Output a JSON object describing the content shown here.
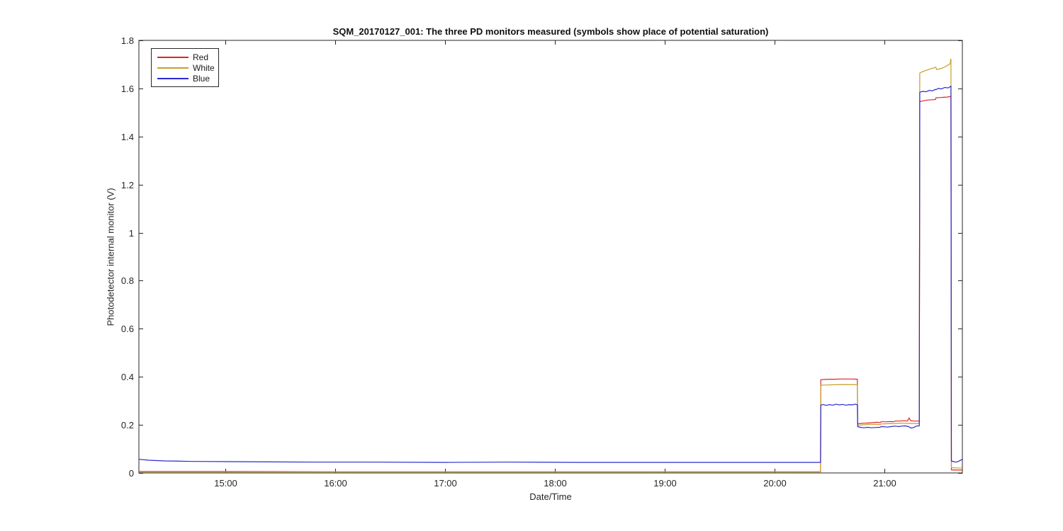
{
  "chart_data": {
    "type": "line",
    "title": "SQM_20170127_001: The three PD monitors measured (symbols show place of potential saturation)",
    "xlabel": "Date/Time",
    "ylabel": "Photodetector internal monitor (V)",
    "x_range": [
      14.213,
      21.71
    ],
    "y_range": [
      0,
      1.8
    ],
    "grid": false,
    "legend_position": "top-left",
    "x_ticks": [
      {
        "value": 15,
        "label": "15:00"
      },
      {
        "value": 16,
        "label": "16:00"
      },
      {
        "value": 17,
        "label": "17:00"
      },
      {
        "value": 18,
        "label": "18:00"
      },
      {
        "value": 19,
        "label": "19:00"
      },
      {
        "value": 20,
        "label": "20:00"
      },
      {
        "value": 21,
        "label": "21:00"
      }
    ],
    "y_ticks": [
      {
        "value": 0,
        "label": "0"
      },
      {
        "value": 0.2,
        "label": "0.2"
      },
      {
        "value": 0.4,
        "label": "0.4"
      },
      {
        "value": 0.6,
        "label": "0.6"
      },
      {
        "value": 0.8,
        "label": "0.8"
      },
      {
        "value": 1,
        "label": "1"
      },
      {
        "value": 1.2,
        "label": "1.2"
      },
      {
        "value": 1.4,
        "label": "1.4"
      },
      {
        "value": 1.6,
        "label": "1.6"
      },
      {
        "value": 1.8,
        "label": "1.8"
      }
    ],
    "axis_color": "#262626",
    "series": [
      {
        "label": "Red",
        "color": "#e02421",
        "points": [
          [
            14.213,
            0.006
          ],
          [
            15,
            0.006
          ],
          [
            16,
            0.005
          ],
          [
            17,
            0.005
          ],
          [
            18,
            0.005
          ],
          [
            19,
            0.005
          ],
          [
            20,
            0.005
          ],
          [
            20.419,
            0.005
          ],
          [
            20.421,
            0.388
          ],
          [
            20.45,
            0.389
          ],
          [
            20.5,
            0.39
          ],
          [
            20.55,
            0.39
          ],
          [
            20.6,
            0.391
          ],
          [
            20.65,
            0.391
          ],
          [
            20.7,
            0.391
          ],
          [
            20.754,
            0.39
          ],
          [
            20.757,
            0.204
          ],
          [
            20.78,
            0.206
          ],
          [
            20.82,
            0.207
          ],
          [
            20.86,
            0.208
          ],
          [
            20.9,
            0.21
          ],
          [
            20.94,
            0.211
          ],
          [
            20.96,
            0.209
          ],
          [
            20.97,
            0.213
          ],
          [
            21.02,
            0.213
          ],
          [
            21.06,
            0.214
          ],
          [
            21.08,
            0.213
          ],
          [
            21.1,
            0.216
          ],
          [
            21.14,
            0.216
          ],
          [
            21.18,
            0.217
          ],
          [
            21.21,
            0.216
          ],
          [
            21.225,
            0.229
          ],
          [
            21.24,
            0.217
          ],
          [
            21.27,
            0.216
          ],
          [
            21.3,
            0.216
          ],
          [
            21.318,
            0.215
          ],
          [
            21.322,
            1.545
          ],
          [
            21.36,
            1.549
          ],
          [
            21.4,
            1.552
          ],
          [
            21.44,
            1.553
          ],
          [
            21.465,
            1.554
          ],
          [
            21.47,
            1.561
          ],
          [
            21.5,
            1.562
          ],
          [
            21.54,
            1.563
          ],
          [
            21.57,
            1.564
          ],
          [
            21.6,
            1.566
          ],
          [
            21.606,
            1.567
          ],
          [
            21.61,
            0.013
          ],
          [
            21.65,
            0.012
          ],
          [
            21.71,
            0.012
          ]
        ]
      },
      {
        "label": "White",
        "color": "#c79d2a",
        "points": [
          [
            14.213,
            0.004
          ],
          [
            16,
            0.004
          ],
          [
            18,
            0.004
          ],
          [
            20,
            0.004
          ],
          [
            20.419,
            0.004
          ],
          [
            20.421,
            0.365
          ],
          [
            20.47,
            0.366
          ],
          [
            20.55,
            0.367
          ],
          [
            20.65,
            0.368
          ],
          [
            20.754,
            0.367
          ],
          [
            20.757,
            0.198
          ],
          [
            20.8,
            0.2
          ],
          [
            20.86,
            0.202
          ],
          [
            20.92,
            0.203
          ],
          [
            20.96,
            0.201
          ],
          [
            20.97,
            0.204
          ],
          [
            21.04,
            0.205
          ],
          [
            21.1,
            0.206
          ],
          [
            21.16,
            0.207
          ],
          [
            21.22,
            0.206
          ],
          [
            21.27,
            0.206
          ],
          [
            21.318,
            0.205
          ],
          [
            21.322,
            1.664
          ],
          [
            21.35,
            1.67
          ],
          [
            21.39,
            1.677
          ],
          [
            21.43,
            1.683
          ],
          [
            21.462,
            1.687
          ],
          [
            21.468,
            1.689
          ],
          [
            21.475,
            1.679
          ],
          [
            21.5,
            1.681
          ],
          [
            21.53,
            1.685
          ],
          [
            21.56,
            1.692
          ],
          [
            21.585,
            1.699
          ],
          [
            21.6,
            1.703
          ],
          [
            21.603,
            1.721
          ],
          [
            21.606,
            1.722
          ],
          [
            21.61,
            0.022
          ],
          [
            21.65,
            0.021
          ],
          [
            21.71,
            0.02
          ]
        ]
      },
      {
        "label": "Blue",
        "color": "#2a2ad0",
        "points": [
          [
            14.213,
            0.057
          ],
          [
            14.3,
            0.053
          ],
          [
            14.45,
            0.05
          ],
          [
            14.7,
            0.048
          ],
          [
            15,
            0.047
          ],
          [
            15.4,
            0.046
          ],
          [
            15.8,
            0.045
          ],
          [
            16.3,
            0.045
          ],
          [
            17,
            0.044
          ],
          [
            17.6,
            0.045
          ],
          [
            18.2,
            0.044
          ],
          [
            18.8,
            0.044
          ],
          [
            19.4,
            0.044
          ],
          [
            20,
            0.044
          ],
          [
            20.419,
            0.044
          ],
          [
            20.421,
            0.282
          ],
          [
            20.44,
            0.285
          ],
          [
            20.47,
            0.281
          ],
          [
            20.5,
            0.284
          ],
          [
            20.53,
            0.282
          ],
          [
            20.56,
            0.286
          ],
          [
            20.59,
            0.283
          ],
          [
            20.62,
            0.285
          ],
          [
            20.65,
            0.282
          ],
          [
            20.68,
            0.284
          ],
          [
            20.71,
            0.283
          ],
          [
            20.73,
            0.286
          ],
          [
            20.754,
            0.284
          ],
          [
            20.757,
            0.193
          ],
          [
            20.78,
            0.19
          ],
          [
            20.81,
            0.188
          ],
          [
            20.85,
            0.19
          ],
          [
            20.88,
            0.188
          ],
          [
            20.92,
            0.189
          ],
          [
            20.96,
            0.19
          ],
          [
            20.97,
            0.193
          ],
          [
            21.03,
            0.191
          ],
          [
            21.06,
            0.193
          ],
          [
            21.1,
            0.195
          ],
          [
            21.13,
            0.193
          ],
          [
            21.16,
            0.195
          ],
          [
            21.19,
            0.196
          ],
          [
            21.22,
            0.193
          ],
          [
            21.24,
            0.187
          ],
          [
            21.27,
            0.189
          ],
          [
            21.29,
            0.195
          ],
          [
            21.318,
            0.196
          ],
          [
            21.322,
            1.584
          ],
          [
            21.35,
            1.588
          ],
          [
            21.38,
            1.586
          ],
          [
            21.41,
            1.592
          ],
          [
            21.44,
            1.59
          ],
          [
            21.462,
            1.596
          ],
          [
            21.468,
            1.594
          ],
          [
            21.49,
            1.6
          ],
          [
            21.52,
            1.598
          ],
          [
            21.55,
            1.604
          ],
          [
            21.58,
            1.602
          ],
          [
            21.6,
            1.608
          ],
          [
            21.606,
            1.61
          ],
          [
            21.61,
            0.05
          ],
          [
            21.63,
            0.047
          ],
          [
            21.65,
            0.045
          ],
          [
            21.67,
            0.047
          ],
          [
            21.69,
            0.052
          ],
          [
            21.71,
            0.057
          ]
        ]
      }
    ]
  }
}
